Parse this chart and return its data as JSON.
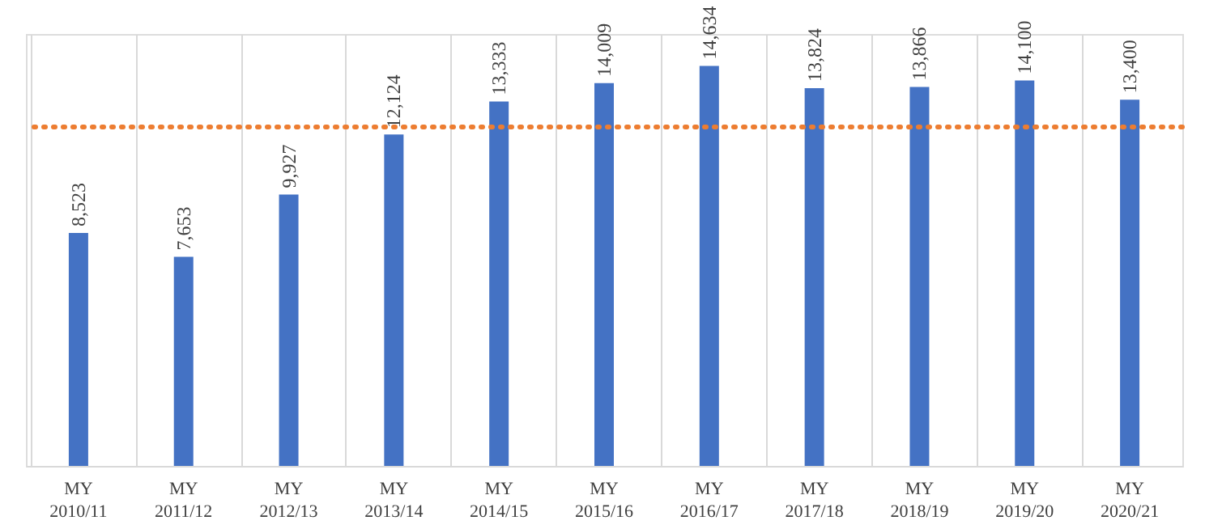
{
  "chart_data": {
    "type": "bar",
    "categories": [
      "MY 2010/11",
      "MY 2011/12",
      "MY 2012/13",
      "MY 2013/14",
      "MY 2014/15",
      "MY 2015/16",
      "MY 2016/17",
      "MY 2017/18",
      "MY 2018/19",
      "MY 2019/20",
      "MY 2020/21"
    ],
    "values": [
      8523,
      7653,
      9927,
      12124,
      13333,
      14009,
      14634,
      13824,
      13866,
      14100,
      13400
    ],
    "color": "#4472c4",
    "value_labels": [
      "8,523",
      "7,653",
      "9,927",
      "12,124",
      "13,333",
      "14,009",
      "14,634",
      "13,824",
      "13,866",
      "14,100",
      "13,400"
    ],
    "grid": "x",
    "ref_lines": [
      {
        "axis": "y",
        "value": 12400,
        "color": "#ed7d31",
        "line_style": "dotted"
      }
    ]
  }
}
